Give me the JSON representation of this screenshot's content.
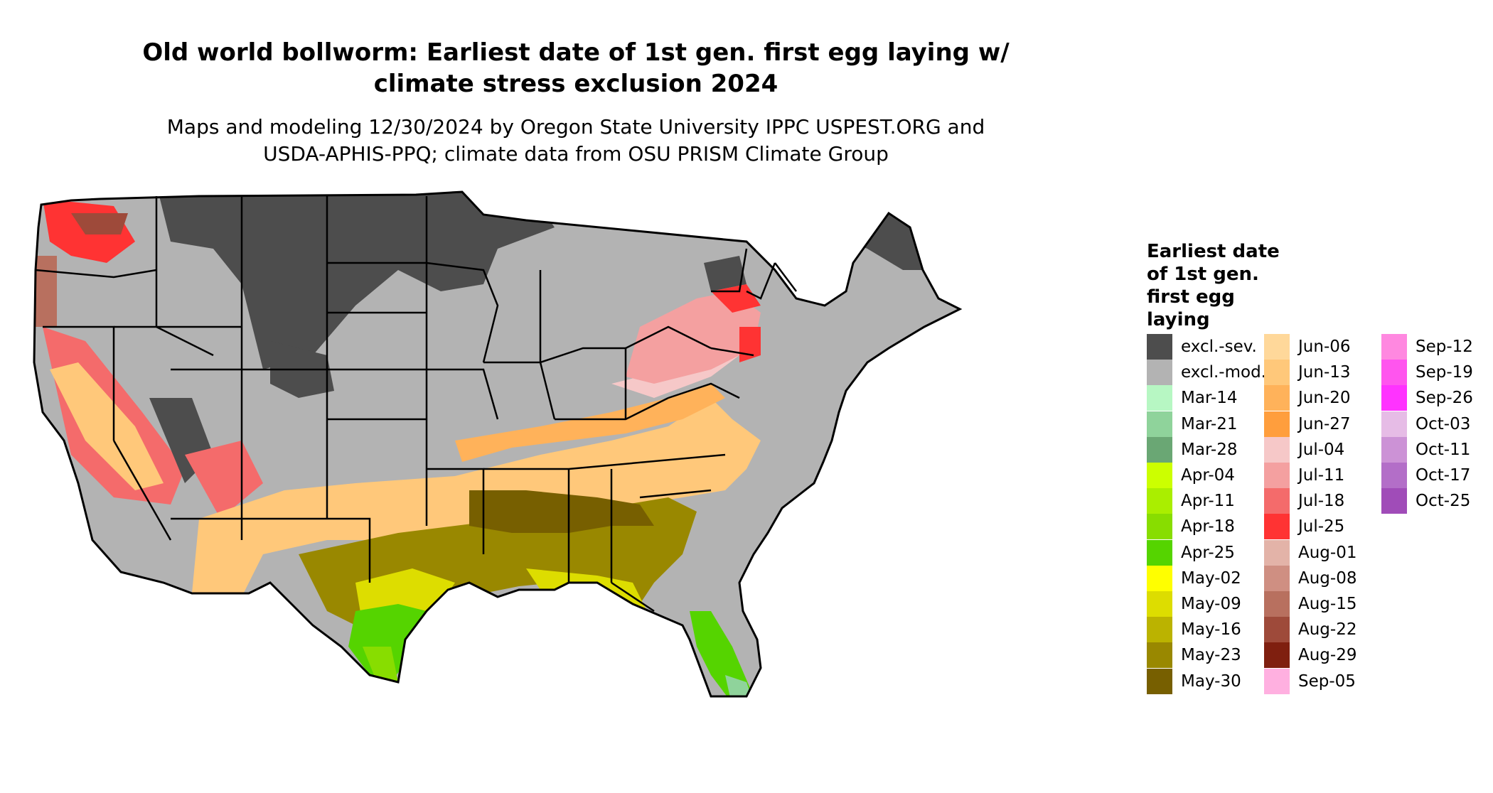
{
  "title": "Old world bollworm: Earliest date of 1st gen. first egg laying w/ climate stress exclusion 2024",
  "title_lines": [
    "Old world bollworm: Earliest date of 1st gen. first egg laying w/",
    "climate stress exclusion 2024"
  ],
  "subtitle_lines": [
    "Maps and modeling 12/30/2024 by Oregon State University IPPC USPEST.ORG and",
    "USDA-APHIS-PPQ; climate data from OSU PRISM Climate Group"
  ],
  "legend": {
    "title_lines": [
      "Earliest date",
      "of 1st gen.",
      "first egg",
      "laying"
    ],
    "items": [
      {
        "label": "excl.-sev.",
        "color": "#4d4d4d"
      },
      {
        "label": "excl.-mod.",
        "color": "#b3b3b3"
      },
      {
        "label": "Mar-14",
        "color": "#b7f7c3"
      },
      {
        "label": "Mar-21",
        "color": "#8fd39b"
      },
      {
        "label": "Mar-28",
        "color": "#6aa774"
      },
      {
        "label": "Apr-04",
        "color": "#ccff00"
      },
      {
        "label": "Apr-11",
        "color": "#aaee00"
      },
      {
        "label": "Apr-18",
        "color": "#88dd00"
      },
      {
        "label": "Apr-25",
        "color": "#55d400"
      },
      {
        "label": "May-02",
        "color": "#ffff00"
      },
      {
        "label": "May-09",
        "color": "#dddd00"
      },
      {
        "label": "May-16",
        "color": "#bbb300"
      },
      {
        "label": "May-23",
        "color": "#998800"
      },
      {
        "label": "May-30",
        "color": "#775f00"
      },
      {
        "label": "Jun-06",
        "color": "#ffd89a"
      },
      {
        "label": "Jun-13",
        "color": "#ffc87a"
      },
      {
        "label": "Jun-20",
        "color": "#ffb25a"
      },
      {
        "label": "Jun-27",
        "color": "#ff9e3d"
      },
      {
        "label": "Jul-04",
        "color": "#f6c8c8"
      },
      {
        "label": "Jul-11",
        "color": "#f4a0a0"
      },
      {
        "label": "Jul-18",
        "color": "#f46b6b"
      },
      {
        "label": "Jul-25",
        "color": "#ff3333"
      },
      {
        "label": "Aug-01",
        "color": "#e3b3a8"
      },
      {
        "label": "Aug-08",
        "color": "#cf8f82"
      },
      {
        "label": "Aug-15",
        "color": "#b8705f"
      },
      {
        "label": "Aug-22",
        "color": "#9e4a3a"
      },
      {
        "label": "Aug-29",
        "color": "#7f1f0f"
      },
      {
        "label": "Sep-05",
        "color": "#ffb0e0"
      },
      {
        "label": "Sep-12",
        "color": "#ff88e0"
      },
      {
        "label": "Sep-19",
        "color": "#ff55ee"
      },
      {
        "label": "Sep-26",
        "color": "#ff33ff"
      },
      {
        "label": "Oct-03",
        "color": "#e6bce6"
      },
      {
        "label": "Oct-11",
        "color": "#cc92d6"
      },
      {
        "label": "Oct-17",
        "color": "#b36ec8"
      },
      {
        "label": "Oct-25",
        "color": "#a04cb8"
      }
    ]
  }
}
